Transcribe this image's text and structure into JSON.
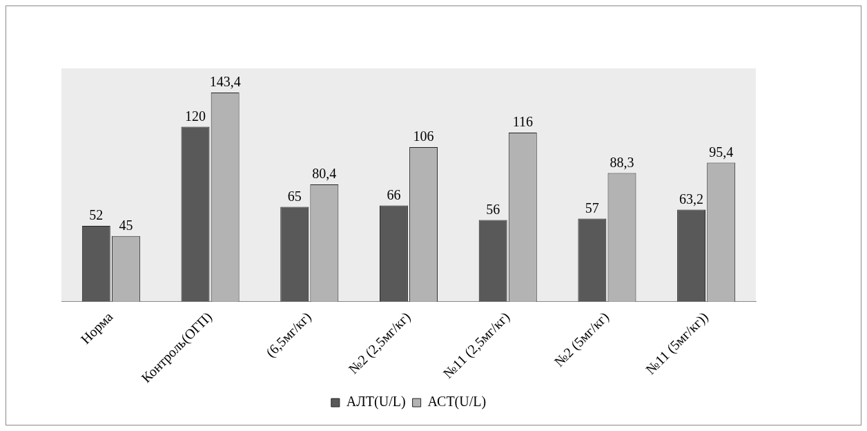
{
  "chart_data": {
    "type": "bar",
    "categories": [
      "Норма",
      "Контроль(ОГП)",
      "(6,5мг/кг)",
      "№2 (2,5мг/кг)",
      "№11 (2,5мг/кг)",
      "№2 (5мг/кг)",
      "№11 (5мг/кг))"
    ],
    "series": [
      {
        "name": "АЛТ(U/L)",
        "color": "#595959",
        "values": [
          52,
          120,
          65,
          66,
          56,
          57,
          63.2
        ],
        "value_labels": [
          "52",
          "120",
          "65",
          "66",
          "56",
          "57",
          "63,2"
        ]
      },
      {
        "name": "АСТ(U/L)",
        "color": "#b3b3b3",
        "values": [
          45,
          143.4,
          80.4,
          106,
          116,
          88.3,
          95.4
        ],
        "value_labels": [
          "45",
          "143,4",
          "80,4",
          "106",
          "116",
          "88,3",
          "95,4"
        ]
      }
    ],
    "legend": "bottom",
    "grid": false,
    "tick_labels": "x"
  }
}
